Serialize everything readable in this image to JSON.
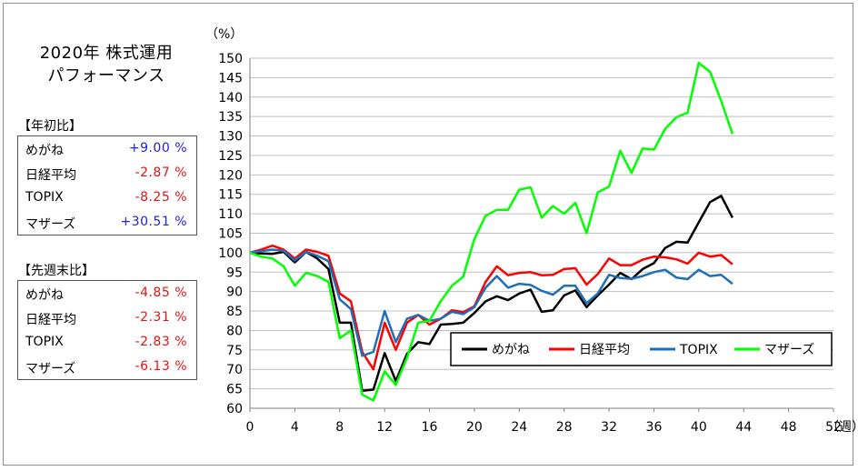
{
  "panel": {
    "title_line1": "2020年 株式運用",
    "title_line2": "パフォーマンス"
  },
  "ytd": {
    "label": "【年初比】",
    "rows": [
      {
        "name": "めがね",
        "value": "+9.00 %",
        "sign": "pos"
      },
      {
        "name": "日経平均",
        "value": "-2.87 %",
        "sign": "neg"
      },
      {
        "name": "TOPIX",
        "value": "-8.25 %",
        "sign": "neg"
      },
      {
        "name": "マザーズ",
        "value": "+30.51 %",
        "sign": "pos"
      }
    ]
  },
  "wow": {
    "label": "【先週末比】",
    "rows": [
      {
        "name": "めがね",
        "value": "-4.85 %",
        "sign": "neg"
      },
      {
        "name": "日経平均",
        "value": "-2.31 %",
        "sign": "neg"
      },
      {
        "name": "TOPIX",
        "value": "-2.83 %",
        "sign": "neg"
      },
      {
        "name": "マザーズ",
        "value": "-6.13 %",
        "sign": "neg"
      }
    ]
  },
  "chart_data": {
    "type": "line",
    "ylabel": "（%）",
    "xlabel": "（週）",
    "ylim": [
      60,
      150
    ],
    "yticks": [
      60,
      65,
      70,
      75,
      80,
      85,
      90,
      95,
      100,
      105,
      110,
      115,
      120,
      125,
      130,
      135,
      140,
      145,
      150
    ],
    "xlim": [
      0,
      52
    ],
    "xticks": [
      0,
      4,
      8,
      12,
      16,
      20,
      24,
      28,
      32,
      36,
      40,
      44,
      48,
      52
    ],
    "grid": "horizontal",
    "legend_position": "lower-right",
    "x": [
      0,
      1,
      2,
      3,
      4,
      5,
      6,
      7,
      8,
      9,
      10,
      11,
      12,
      13,
      14,
      15,
      16,
      17,
      18,
      19,
      20,
      21,
      22,
      23,
      24,
      25,
      26,
      27,
      28,
      29,
      30,
      31,
      32,
      33,
      34,
      35,
      36,
      37,
      38,
      39,
      40,
      41,
      42,
      43
    ],
    "series": [
      {
        "name": "めがね",
        "color": "#000000",
        "values": [
          100,
          99.8,
          99.7,
          100.2,
          97.5,
          100.2,
          98.5,
          95.8,
          82,
          82,
          64.5,
          64.8,
          74.2,
          67,
          74,
          77,
          76.5,
          81.5,
          81.7,
          82,
          84.5,
          87.5,
          88.8,
          87.8,
          89.5,
          90.5,
          84.8,
          85.2,
          89,
          90.3,
          86,
          89,
          91.8,
          94.8,
          93.2,
          95.8,
          97.3,
          101.2,
          102.8,
          102.6,
          107.8,
          113,
          114.6,
          109
        ]
      },
      {
        "name": "日経平均",
        "color": "#ff0000",
        "values": [
          100,
          100.8,
          101.8,
          100.8,
          98.5,
          100.8,
          100.2,
          99.2,
          89.5,
          87.5,
          74.5,
          70,
          82,
          75,
          82,
          84,
          81.5,
          83,
          85.2,
          84.7,
          86.2,
          92.5,
          96.5,
          94.2,
          94.8,
          95,
          94.2,
          94.3,
          95.8,
          96,
          91.8,
          94.5,
          98.5,
          96.8,
          96.8,
          98.2,
          99,
          98.8,
          98.3,
          97.2,
          100,
          99,
          99.4,
          97
        ]
      },
      {
        "name": "TOPIX",
        "color": "#1f6fb8",
        "values": [
          100,
          100.4,
          100.8,
          100.5,
          98,
          100.2,
          99.2,
          97.8,
          88,
          85.5,
          73.5,
          74.5,
          85,
          77,
          83,
          84,
          82.5,
          83,
          84.8,
          84.2,
          86,
          91,
          94,
          91,
          92,
          91.7,
          90.2,
          89.2,
          91.5,
          91.5,
          87,
          89.5,
          94.3,
          93.5,
          93.3,
          94,
          95,
          95.6,
          93.6,
          93.2,
          95.6,
          94,
          94.3,
          92
        ]
      },
      {
        "name": "マザーズ",
        "color": "#00ff00",
        "values": [
          100,
          99,
          98.5,
          96.5,
          91.5,
          94.8,
          94,
          92.5,
          78,
          80,
          63.5,
          62,
          69.5,
          66,
          73,
          82,
          82.5,
          87.5,
          91.5,
          93.8,
          103.5,
          109.5,
          111,
          111,
          116.2,
          116.8,
          109,
          112,
          110,
          112.8,
          105,
          115.5,
          117,
          126.2,
          120.5,
          126.8,
          126.5,
          131.8,
          134.8,
          136,
          148.8,
          146.5,
          139,
          130.5
        ]
      }
    ]
  }
}
